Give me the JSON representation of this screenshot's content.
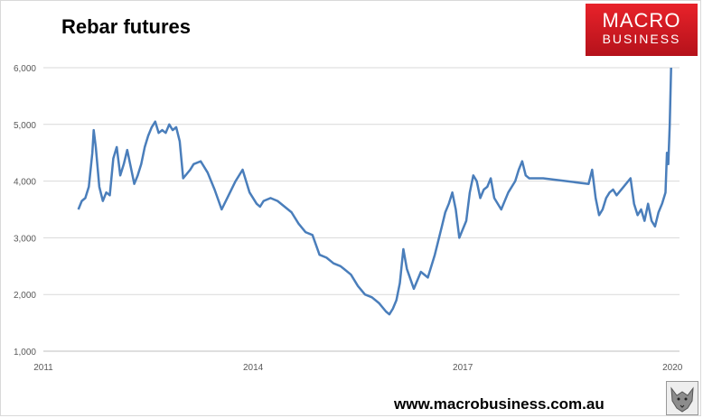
{
  "logo": {
    "line1": "MACRO",
    "line2": "BUSINESS"
  },
  "website": "www.macrobusiness.com.au",
  "colors": {
    "line": "#4a7ebb",
    "grid": "#d9d9d9",
    "logo_red": "#d7191f"
  },
  "chart_data": {
    "type": "line",
    "title": "Rebar futures",
    "xlabel": "",
    "ylabel": "",
    "x_ticks": [
      "2011",
      "2014",
      "2017",
      "2020"
    ],
    "y_ticks": [
      1000,
      2000,
      3000,
      4000,
      5000,
      6000
    ],
    "y_tick_labels": [
      "1,000",
      "2,000",
      "3,000",
      "4,000",
      "5,000",
      "6,000"
    ],
    "xlim": [
      2011.0,
      2020.1
    ],
    "ylim": [
      1000,
      6000
    ],
    "grid": "horizontal",
    "legend": "none",
    "series": [
      {
        "x": [
          2011.5,
          2011.55,
          2011.6,
          2011.65,
          2011.7,
          2011.72,
          2011.75,
          2011.8,
          2011.85,
          2011.9,
          2011.95,
          2012.0,
          2012.05,
          2012.1,
          2012.15,
          2012.2,
          2012.25,
          2012.3,
          2012.35,
          2012.4,
          2012.45,
          2012.5,
          2012.55,
          2012.6,
          2012.65,
          2012.7,
          2012.75,
          2012.8,
          2012.85,
          2012.9,
          2012.95,
          2013.0,
          2013.1,
          2013.15,
          2013.25,
          2013.35,
          2013.45,
          2013.55,
          2013.65,
          2013.75,
          2013.85,
          2013.95,
          2014.05,
          2014.1,
          2014.15,
          2014.25,
          2014.35,
          2014.45,
          2014.55,
          2014.65,
          2014.75,
          2014.85,
          2014.95,
          2015.05,
          2015.15,
          2015.25,
          2015.3,
          2015.4,
          2015.5,
          2015.6,
          2015.7,
          2015.8,
          2015.9,
          2015.95,
          2016.0,
          2016.05,
          2016.1,
          2016.15,
          2016.2,
          2016.3,
          2016.4,
          2016.5,
          2016.6,
          2016.7,
          2016.75,
          2016.8,
          2016.85,
          2016.9,
          2016.95,
          2017.05,
          2017.1,
          2017.15,
          2017.2,
          2017.25,
          2017.3,
          2017.35,
          2017.4,
          2017.45,
          2017.55,
          2017.65,
          2017.75,
          2017.8,
          2017.85,
          2017.9,
          2017.95,
          2018.0,
          2018.05,
          2018.1,
          2018.15,
          2018.8,
          2018.85,
          2018.9,
          2018.95,
          2019.0,
          2019.05,
          2019.1,
          2019.15,
          2019.2,
          2019.3,
          2019.4,
          2019.45,
          2019.5,
          2019.55,
          2019.6,
          2019.65,
          2019.7,
          2019.75,
          2019.8,
          2019.85,
          2019.9,
          2019.92,
          2019.94,
          2019.96,
          2019.98
        ],
        "values": [
          3500,
          3650,
          3700,
          3900,
          4500,
          4900,
          4600,
          3900,
          3650,
          3800,
          3750,
          4400,
          4600,
          4100,
          4300,
          4550,
          4250,
          3950,
          4100,
          4300,
          4600,
          4800,
          4950,
          5050,
          4850,
          4900,
          4850,
          5000,
          4900,
          4950,
          4700,
          4050,
          4200,
          4300,
          4350,
          4150,
          3850,
          3500,
          3750,
          4000,
          4200,
          3800,
          3600,
          3550,
          3650,
          3700,
          3650,
          3550,
          3450,
          3250,
          3100,
          3050,
          2700,
          2650,
          2550,
          2500,
          2450,
          2350,
          2150,
          2000,
          1950,
          1850,
          1700,
          1650,
          1750,
          1900,
          2200,
          2800,
          2450,
          2100,
          2400,
          2300,
          2700,
          3200,
          3450,
          3600,
          3800,
          3500,
          3000,
          3300,
          3800,
          4100,
          4000,
          3700,
          3850,
          3900,
          4050,
          3700,
          3500,
          3800,
          4000,
          4200,
          4350,
          4100,
          4050,
          4050,
          4050,
          4050,
          4050,
          3950,
          4200,
          3700,
          3400,
          3500,
          3700,
          3800,
          3850,
          3750,
          3900,
          4050,
          3600,
          3400,
          3500,
          3300,
          3600,
          3300,
          3200,
          3450,
          3600,
          3800,
          4500,
          4300,
          5000,
          6000
        ]
      }
    ]
  }
}
